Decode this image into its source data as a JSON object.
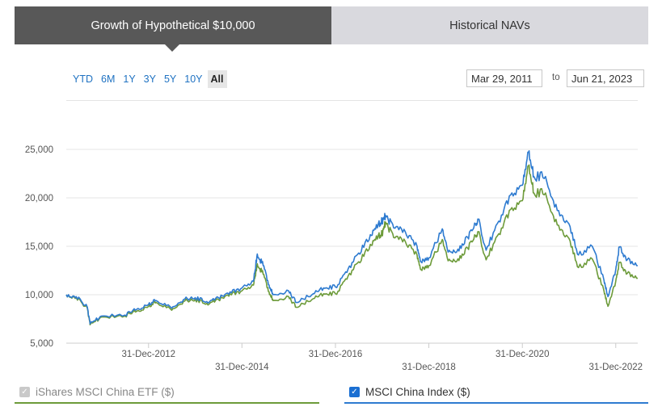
{
  "tabs": {
    "active": "Growth of Hypothetical $10,000",
    "inactive": "Historical NAVs"
  },
  "ranges": {
    "buttons": [
      "YTD",
      "6M",
      "1Y",
      "3Y",
      "5Y",
      "10Y",
      "All"
    ],
    "selected": "All"
  },
  "date_range": {
    "from": "Mar 29, 2011",
    "separator": "to",
    "to": "Jun 21, 2023"
  },
  "legend": {
    "etf_label": "iShares MSCI China ETF ($)",
    "index_label": "MSCI China Index ($)"
  },
  "chart_data": {
    "type": "line",
    "title": "",
    "xlabel": "",
    "ylabel": "",
    "x_range": [
      "2011-03-29",
      "2023-06-21"
    ],
    "ylim": [
      5000,
      27500
    ],
    "y_ticks": [
      5000,
      10000,
      15000,
      20000,
      25000
    ],
    "y_tick_labels": [
      "5,000",
      "10,000",
      "15,000",
      "20,000",
      "25,000"
    ],
    "x_ticks": [
      "2012-12-31",
      "2014-12-31",
      "2016-12-31",
      "2018-12-31",
      "2020-12-31",
      "2022-12-31"
    ],
    "x_tick_labels": [
      "31-Dec-2012",
      "31-Dec-2014",
      "31-Dec-2016",
      "31-Dec-2018",
      "31-Dec-2020",
      "31-Dec-2022"
    ],
    "grid": "horizontal",
    "series": [
      {
        "name": "iShares MSCI China ETF ($)",
        "color": "#6d9b3a",
        "x": [
          "2011-03-29",
          "2011-06-15",
          "2011-09-10",
          "2011-10-01",
          "2011-12-31",
          "2012-06-30",
          "2012-09-30",
          "2012-12-31",
          "2013-02-28",
          "2013-06-30",
          "2013-09-30",
          "2013-12-31",
          "2014-03-31",
          "2014-06-30",
          "2014-09-30",
          "2014-12-31",
          "2015-03-31",
          "2015-04-30",
          "2015-06-15",
          "2015-07-31",
          "2015-08-31",
          "2015-12-31",
          "2016-02-29",
          "2016-06-30",
          "2016-09-30",
          "2016-12-31",
          "2017-03-31",
          "2017-06-30",
          "2017-09-30",
          "2017-11-30",
          "2017-12-31",
          "2018-01-26",
          "2018-03-31",
          "2018-06-30",
          "2018-09-30",
          "2018-10-31",
          "2018-12-31",
          "2019-04-15",
          "2019-05-31",
          "2019-08-15",
          "2019-10-31",
          "2019-12-31",
          "2020-01-20",
          "2020-03-23",
          "2020-06-30",
          "2020-09-30",
          "2020-12-31",
          "2021-02-17",
          "2021-03-31",
          "2021-06-30",
          "2021-09-30",
          "2021-12-31",
          "2022-03-15",
          "2022-06-30",
          "2022-09-30",
          "2022-10-31",
          "2022-12-31",
          "2023-01-27",
          "2023-03-31",
          "2023-06-21"
        ],
        "y": [
          10000,
          9700,
          8600,
          6900,
          7700,
          7800,
          8300,
          8800,
          9200,
          8400,
          9300,
          9500,
          9100,
          9500,
          10100,
          10400,
          11000,
          13200,
          12100,
          10300,
          9400,
          9800,
          8700,
          9500,
          10100,
          10100,
          11600,
          13400,
          15200,
          16100,
          16300,
          17500,
          15900,
          15500,
          14100,
          12600,
          13000,
          15700,
          13500,
          13700,
          14800,
          16100,
          16500,
          13600,
          16300,
          18800,
          19700,
          23300,
          20500,
          20500,
          17200,
          15800,
          12800,
          13700,
          10400,
          8800,
          11400,
          13300,
          12200,
          11700
        ]
      },
      {
        "name": "MSCI China Index ($)",
        "color": "#2e7bd0",
        "x": [
          "2011-03-29",
          "2011-06-15",
          "2011-09-10",
          "2011-10-01",
          "2011-12-31",
          "2012-06-30",
          "2012-09-30",
          "2012-12-31",
          "2013-02-28",
          "2013-06-30",
          "2013-09-30",
          "2013-12-31",
          "2014-03-31",
          "2014-06-30",
          "2014-09-30",
          "2014-12-31",
          "2015-03-31",
          "2015-04-30",
          "2015-06-15",
          "2015-07-31",
          "2015-08-31",
          "2015-12-31",
          "2016-02-29",
          "2016-06-30",
          "2016-09-30",
          "2016-12-31",
          "2017-03-31",
          "2017-06-30",
          "2017-09-30",
          "2017-11-30",
          "2017-12-31",
          "2018-01-26",
          "2018-03-31",
          "2018-06-30",
          "2018-09-30",
          "2018-10-31",
          "2018-12-31",
          "2019-04-15",
          "2019-05-31",
          "2019-08-15",
          "2019-10-31",
          "2019-12-31",
          "2020-01-20",
          "2020-03-23",
          "2020-06-30",
          "2020-09-30",
          "2020-12-31",
          "2021-02-17",
          "2021-03-31",
          "2021-06-30",
          "2021-09-30",
          "2021-12-31",
          "2022-03-15",
          "2022-06-30",
          "2022-09-30",
          "2022-10-31",
          "2022-12-31",
          "2023-01-27",
          "2023-03-31",
          "2023-06-21"
        ],
        "y": [
          10000,
          9800,
          8700,
          7000,
          7800,
          7900,
          8500,
          9000,
          9400,
          8600,
          9500,
          9700,
          9300,
          9700,
          10300,
          10700,
          11400,
          14200,
          13000,
          11000,
          10000,
          10400,
          9200,
          10000,
          10700,
          10800,
          12300,
          14300,
          16200,
          17300,
          17600,
          18200,
          16900,
          16500,
          15000,
          13400,
          13800,
          16800,
          14400,
          14700,
          15900,
          17300,
          17800,
          14600,
          17600,
          20300,
          21300,
          24700,
          22200,
          22200,
          18700,
          17300,
          14100,
          15000,
          11500,
          9800,
          12600,
          14900,
          13600,
          13000
        ]
      }
    ]
  }
}
